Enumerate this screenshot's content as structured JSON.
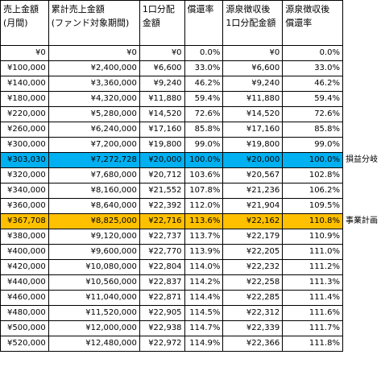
{
  "headers": [
    "売上金額\n(月間)",
    "累計売上金額\n(ファンド対象期間)",
    "1口分配\n金額",
    "償還率",
    "源泉徴収後\n1口分配金額",
    "源泉徴収後\n償還率"
  ],
  "rows": [
    {
      "cells": [
        "¥0",
        "¥0",
        "¥0",
        "0.0%",
        "¥0",
        "0.0%"
      ],
      "note": "",
      "highlight": ""
    },
    {
      "cells": [
        "¥100,000",
        "¥2,400,000",
        "¥6,600",
        "33.0%",
        "¥6,600",
        "33.0%"
      ],
      "note": "",
      "highlight": ""
    },
    {
      "cells": [
        "¥140,000",
        "¥3,360,000",
        "¥9,240",
        "46.2%",
        "¥9,240",
        "46.2%"
      ],
      "note": "",
      "highlight": ""
    },
    {
      "cells": [
        "¥180,000",
        "¥4,320,000",
        "¥11,880",
        "59.4%",
        "¥11,880",
        "59.4%"
      ],
      "note": "",
      "highlight": ""
    },
    {
      "cells": [
        "¥220,000",
        "¥5,280,000",
        "¥14,520",
        "72.6%",
        "¥14,520",
        "72.6%"
      ],
      "note": "",
      "highlight": ""
    },
    {
      "cells": [
        "¥260,000",
        "¥6,240,000",
        "¥17,160",
        "85.8%",
        "¥17,160",
        "85.8%"
      ],
      "note": "",
      "highlight": ""
    },
    {
      "cells": [
        "¥300,000",
        "¥7,200,000",
        "¥19,800",
        "99.0%",
        "¥19,800",
        "99.0%"
      ],
      "note": "",
      "highlight": ""
    },
    {
      "cells": [
        "¥303,030",
        "¥7,272,728",
        "¥20,000",
        "100.0%",
        "¥20,000",
        "100.0%"
      ],
      "note": "損益分岐",
      "highlight": "breakeven"
    },
    {
      "cells": [
        "¥320,000",
        "¥7,680,000",
        "¥20,712",
        "103.6%",
        "¥20,567",
        "102.8%"
      ],
      "note": "",
      "highlight": ""
    },
    {
      "cells": [
        "¥340,000",
        "¥8,160,000",
        "¥21,552",
        "107.8%",
        "¥21,236",
        "106.2%"
      ],
      "note": "",
      "highlight": ""
    },
    {
      "cells": [
        "¥360,000",
        "¥8,640,000",
        "¥22,392",
        "112.0%",
        "¥21,904",
        "109.5%"
      ],
      "note": "",
      "highlight": ""
    },
    {
      "cells": [
        "¥367,708",
        "¥8,825,000",
        "¥22,716",
        "113.6%",
        "¥22,162",
        "110.8%"
      ],
      "note": "事業計画",
      "highlight": "plan"
    },
    {
      "cells": [
        "¥380,000",
        "¥9,120,000",
        "¥22,737",
        "113.7%",
        "¥22,179",
        "110.9%"
      ],
      "note": "",
      "highlight": ""
    },
    {
      "cells": [
        "¥400,000",
        "¥9,600,000",
        "¥22,770",
        "113.9%",
        "¥22,205",
        "111.0%"
      ],
      "note": "",
      "highlight": ""
    },
    {
      "cells": [
        "¥420,000",
        "¥10,080,000",
        "¥22,804",
        "114.0%",
        "¥22,232",
        "111.2%"
      ],
      "note": "",
      "highlight": ""
    },
    {
      "cells": [
        "¥440,000",
        "¥10,560,000",
        "¥22,837",
        "114.2%",
        "¥22,258",
        "111.3%"
      ],
      "note": "",
      "highlight": ""
    },
    {
      "cells": [
        "¥460,000",
        "¥11,040,000",
        "¥22,871",
        "114.4%",
        "¥22,285",
        "111.4%"
      ],
      "note": "",
      "highlight": ""
    },
    {
      "cells": [
        "¥480,000",
        "¥11,520,000",
        "¥22,905",
        "114.5%",
        "¥22,312",
        "111.6%"
      ],
      "note": "",
      "highlight": ""
    },
    {
      "cells": [
        "¥500,000",
        "¥12,000,000",
        "¥22,938",
        "114.7%",
        "¥22,339",
        "111.7%"
      ],
      "note": "",
      "highlight": ""
    },
    {
      "cells": [
        "¥520,000",
        "¥12,480,000",
        "¥22,972",
        "114.9%",
        "¥22,366",
        "111.8%"
      ],
      "note": "",
      "highlight": ""
    }
  ],
  "colors": {
    "breakeven": "#00b0f0",
    "plan": "#ffc000"
  }
}
